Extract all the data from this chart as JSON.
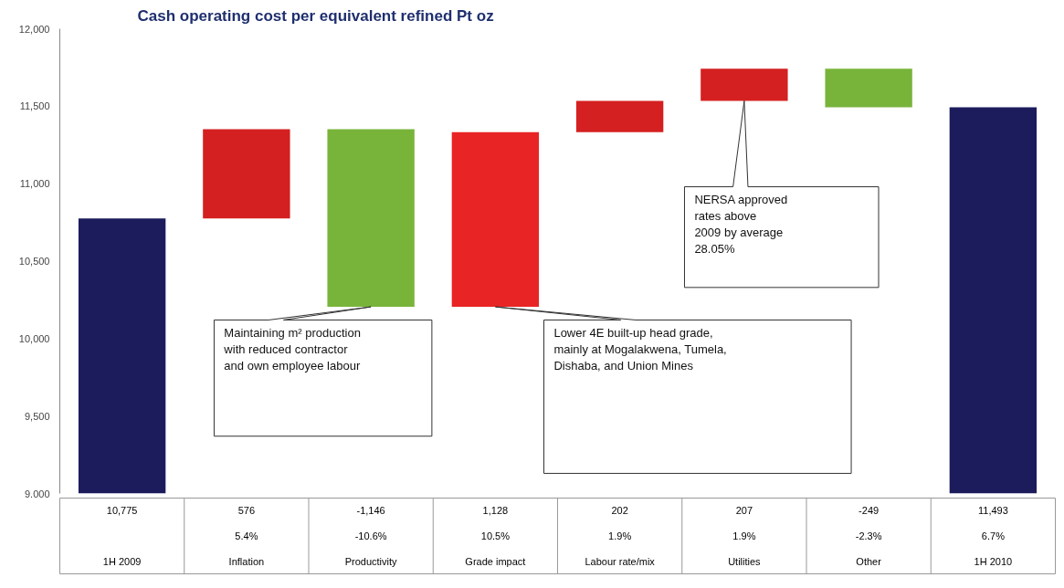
{
  "chart_data": {
    "type": "bar",
    "title": "Cash operating cost per equivalent refined Pt oz",
    "categories": [
      "1H 2009",
      "Inflation",
      "Productivity",
      "Grade impact",
      "Labour rate/mix",
      "Utilities",
      "Other",
      "1H 2010"
    ],
    "values": [
      10775,
      576,
      -1146,
      1128,
      202,
      207,
      -249,
      11493
    ],
    "base": [
      null,
      10775,
      11351,
      10205,
      11333,
      11535,
      11742,
      null
    ],
    "colors": [
      "#1c1c5c",
      "#d42020",
      "#78b43a",
      "#e82424",
      "#d42020",
      "#d42020",
      "#78b43a",
      "#1c1c5c"
    ],
    "value_labels": [
      "10,775",
      "576",
      "-1,146",
      "1,128",
      "202",
      "207",
      "-249",
      "11,493"
    ],
    "ylim": [
      9000,
      12000
    ],
    "yticks": [
      {
        "value": 9000,
        "label": "9,000"
      },
      {
        "value": 9500,
        "label": "9,500"
      },
      {
        "value": 10000,
        "label": "10,000"
      },
      {
        "value": 10500,
        "label": "10,500"
      },
      {
        "value": 11000,
        "label": "11,000"
      },
      {
        "value": 11500,
        "label": "11,500"
      },
      {
        "value": 12000,
        "label": "12,000"
      }
    ],
    "annotations": [
      "Maintaining m² production\nwith reduced contractor\nand own employee labour",
      "Lower 4E built-up head grade,\nmainly at Mogalakwena, Tumela,\nDishaba, and Union Mines",
      "NERSA approved\nrates above\n2009 by average\n28.05%",
      "5.4%",
      "-10.6%",
      "10.5%",
      "1.9%",
      "1.9%",
      "-2.3%",
      "6.7%"
    ],
    "grid": false
  }
}
